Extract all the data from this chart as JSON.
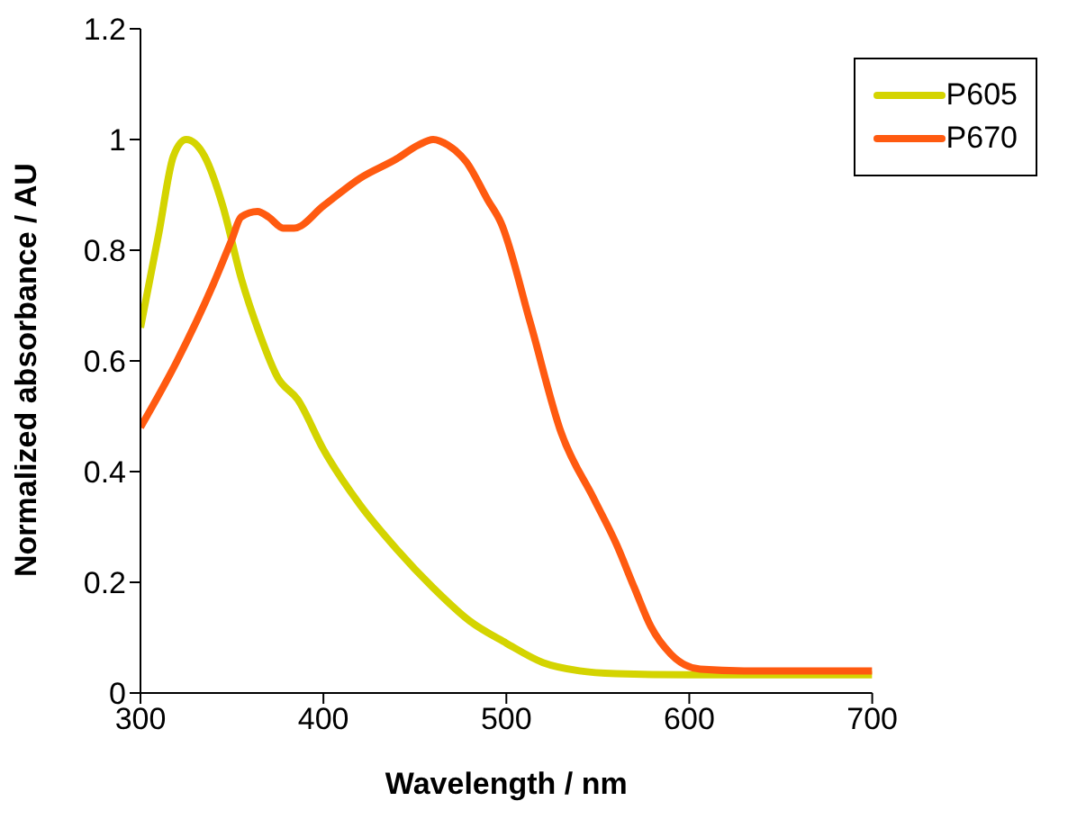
{
  "chart_data": {
    "type": "line",
    "xlabel": "Wavelength / nm",
    "ylabel": "Normalized absorbance / AU",
    "xlim": [
      300,
      700
    ],
    "xticks": [
      300,
      400,
      500,
      600,
      700
    ],
    "ylim": [
      0,
      1.2
    ],
    "yticks": [
      0,
      0.2,
      0.4,
      0.6,
      0.8,
      1,
      1.2
    ],
    "grid": false,
    "legend": "top right",
    "marker": "none",
    "line_style": "solid",
    "series": [
      {
        "name": "P605",
        "color": "#d4d400",
        "x": [
          300,
          310,
          318,
          325,
          335,
          345,
          355,
          365,
          375,
          386,
          400,
          420,
          440,
          460,
          480,
          500,
          520,
          540,
          560,
          600,
          650,
          700
        ],
        "values": [
          0.66,
          0.83,
          0.97,
          1.0,
          0.97,
          0.88,
          0.75,
          0.65,
          0.57,
          0.53,
          0.44,
          0.34,
          0.26,
          0.19,
          0.13,
          0.09,
          0.055,
          0.04,
          0.035,
          0.033,
          0.033,
          0.033
        ]
      },
      {
        "name": "P670",
        "color": "#ff5a10",
        "x": [
          300,
          320,
          340,
          350,
          355,
          364,
          370,
          378,
          384,
          400,
          420,
          440,
          452,
          460,
          468,
          478,
          490,
          497,
          513,
          530,
          548,
          560,
          570,
          579,
          590,
          606,
          630,
          700
        ],
        "values": [
          0.48,
          0.6,
          0.74,
          0.82,
          0.86,
          0.87,
          0.86,
          0.84,
          0.84,
          0.88,
          0.93,
          0.965,
          0.99,
          1.0,
          0.99,
          0.96,
          0.89,
          0.85,
          0.67,
          0.47,
          0.35,
          0.27,
          0.19,
          0.12,
          0.07,
          0.043,
          0.04,
          0.04
        ]
      }
    ]
  }
}
